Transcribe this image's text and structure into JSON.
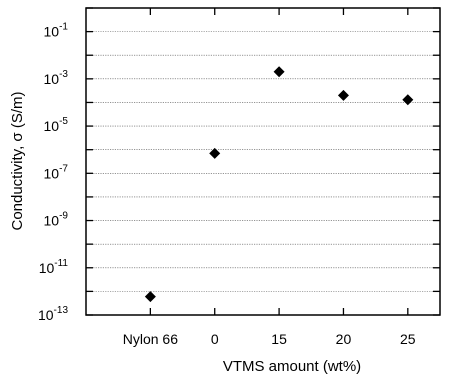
{
  "chart_data": {
    "type": "scatter",
    "categories": [
      "Nylon 66",
      "0",
      "15",
      "20",
      "25"
    ],
    "values": [
      6e-13,
      7e-07,
      0.002,
      0.0002,
      0.00013
    ],
    "xlabel": "VTMS amount (wt%)",
    "ylabel_main": "Conductivity, ",
    "ylabel_sym": "σ",
    "ylabel_unit": " (S/m)",
    "y_scale": "log",
    "ylim_exp": [
      -13,
      0
    ],
    "y_ticks": [
      {
        "base": "10",
        "exp": "-13",
        "e": -13
      },
      {
        "base": "10",
        "exp": "-11",
        "e": -11
      },
      {
        "base": "10",
        "exp": "-9",
        "e": -9
      },
      {
        "base": "10",
        "exp": "-7",
        "e": -7
      },
      {
        "base": "10",
        "exp": "-5",
        "e": -5
      },
      {
        "base": "10",
        "exp": "-3",
        "e": -3
      },
      {
        "base": "10",
        "exp": "-1",
        "e": -1
      }
    ],
    "grid": true,
    "marker": "diamond",
    "marker_color": "#000000"
  }
}
